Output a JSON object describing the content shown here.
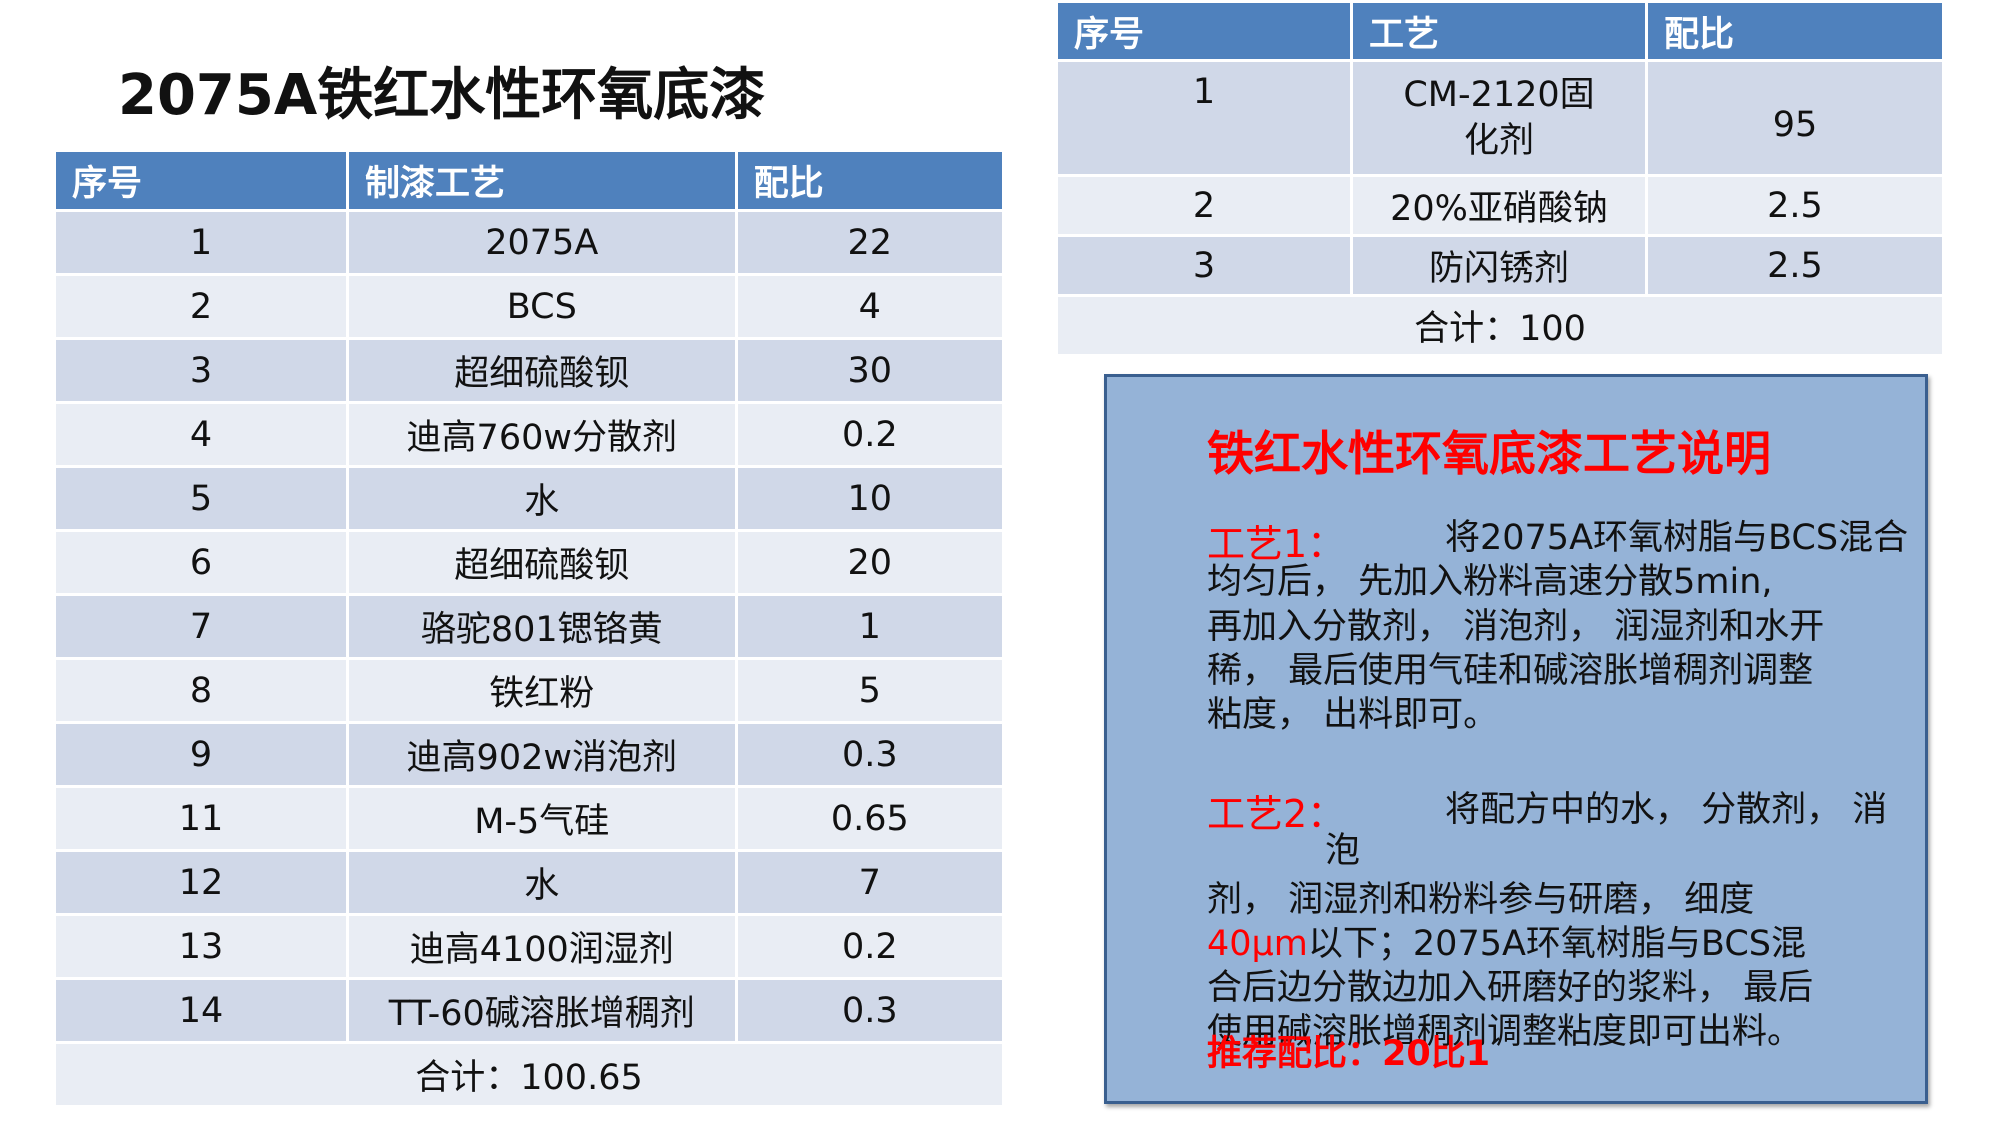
{
  "title": "2075A铁红水性环氧底漆",
  "recipe_table": {
    "headers": [
      "序号",
      "制漆工艺",
      "配比"
    ],
    "rows": [
      [
        "1",
        "2075A",
        "22"
      ],
      [
        "2",
        "BCS",
        "4"
      ],
      [
        "3",
        "超细硫酸钡",
        "30"
      ],
      [
        "4",
        "迪高760w分散剂",
        "0.2"
      ],
      [
        "5",
        "水",
        "10"
      ],
      [
        "6",
        "超细硫酸钡",
        "20"
      ],
      [
        "7",
        "骆驼801锶铬黄",
        "1"
      ],
      [
        "8",
        "铁红粉",
        "5"
      ],
      [
        "9",
        "迪高902w消泡剂",
        "0.3"
      ],
      [
        "11",
        "M-5气硅",
        "0.65"
      ],
      [
        "12",
        "水",
        "7"
      ],
      [
        "13",
        "迪高4100润湿剂",
        "0.2"
      ],
      [
        "14",
        "TT-60碱溶胀增稠剂",
        "0.3"
      ]
    ],
    "total": "合计：100.65"
  },
  "curing_table": {
    "headers": [
      "序号",
      "工艺",
      "配比"
    ],
    "rows": [
      [
        "1",
        "CM-2120固化剂",
        "95"
      ],
      [
        "2",
        "20%亚硝酸钠",
        "2.5"
      ],
      [
        "3",
        "防闪锈剂",
        "2.5"
      ]
    ],
    "total": "合计：100"
  },
  "note": {
    "title": "铁红水性环氧底漆工艺说明",
    "process1_label": "工艺1：",
    "process1_lines": [
      "将2075A环氧树脂与BCS混合",
      "均匀后， 先加入粉料高速分散5min,",
      "再加入分散剂， 消泡剂， 润湿剂和水开",
      "稀， 最后使用气硅和碱溶胀增稠剂调整",
      "粘度， 出料即可。"
    ],
    "process2_label": "工艺2：",
    "process2_lines": [
      "将配方中的水， 分散剂， 消",
      "泡",
      "剂， 润湿剂和粉料参与研磨， 细度",
      "以下；2075A环氧树脂与BCS混",
      "合后边分散边加入研磨好的浆料， 最后",
      "使用碱溶胀增稠剂调整粘度即可出料。"
    ],
    "fineness": "40μm",
    "recommend": "推荐配比：20比1"
  }
}
